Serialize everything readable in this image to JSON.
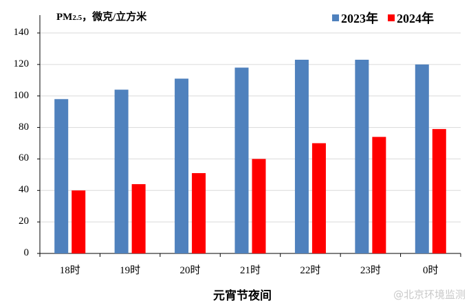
{
  "chart_data": {
    "type": "bar",
    "title": "",
    "unit_label": "PM2.5，微克/立方米",
    "xlabel": "元宵节夜间",
    "ylabel": "PM2.5，微克/立方米",
    "categories": [
      "18时",
      "19时",
      "20时",
      "21时",
      "22时",
      "23时",
      "0时"
    ],
    "series": [
      {
        "name": "2023年",
        "color": "#4f81bd",
        "values": [
          98,
          104,
          111,
          118,
          123,
          123,
          120
        ]
      },
      {
        "name": "2024年",
        "color": "#ff0000",
        "values": [
          40,
          44,
          51,
          60,
          70,
          74,
          79
        ]
      }
    ],
    "ylim": [
      0,
      140
    ],
    "yticks": [
      0,
      20,
      40,
      60,
      80,
      100,
      120,
      140
    ],
    "grid": true,
    "legend_position": "top-right"
  },
  "header": {
    "unit_main": "PM",
    "unit_sub": "2.5",
    "unit_rest": "，微克/立方米"
  },
  "legend": {
    "items": [
      {
        "label": "2023年",
        "color": "#4f81bd"
      },
      {
        "label": "2024年",
        "color": "#ff0000"
      }
    ]
  },
  "watermark": "@北京环境监测"
}
